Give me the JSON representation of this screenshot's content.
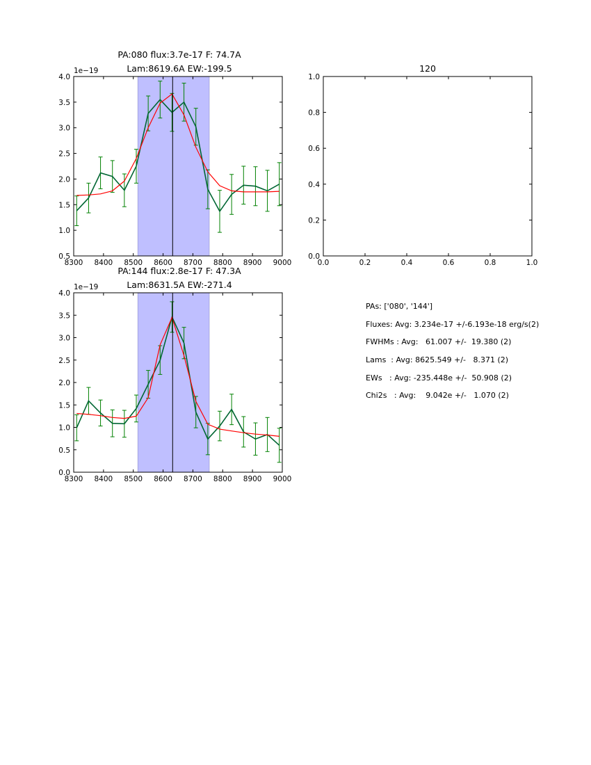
{
  "figure": {
    "background": "#ffffff"
  },
  "colors": {
    "data_line": "#006633",
    "errorbar": "#008000",
    "model": "#ff0000",
    "span": "#bfbfff",
    "vline": "#000000"
  },
  "chart_data": [
    {
      "type": "line",
      "title": "PA:080 flux:3.7e-17 F: 74.7A",
      "subtitle": "Lam:8619.6A EW:-199.5",
      "xlabel": "",
      "ylabel": "",
      "xlim": [
        8300,
        9000
      ],
      "ylim": [
        0.5,
        4.0
      ],
      "offset_text": "1e−19",
      "xticks": [
        "8300",
        "8400",
        "8500",
        "8600",
        "8700",
        "8800",
        "8900",
        "9000"
      ],
      "yticks": [
        "0.5",
        "1.0",
        "1.5",
        "2.0",
        "2.5",
        "3.0",
        "3.5",
        "4.0"
      ],
      "span": [
        8515,
        8755
      ],
      "vline": 8632,
      "x": [
        8310,
        8350,
        8390,
        8430,
        8470,
        8510,
        8550,
        8590,
        8630,
        8670,
        8710,
        8750,
        8790,
        8830,
        8870,
        8910,
        8950,
        8990
      ],
      "series": [
        {
          "name": "data",
          "values": [
            1.38,
            1.63,
            2.12,
            2.05,
            1.78,
            2.25,
            3.28,
            3.55,
            3.3,
            3.5,
            3.02,
            1.8,
            1.37,
            1.7,
            1.88,
            1.86,
            1.77,
            1.9
          ],
          "errors": [
            0.29,
            0.29,
            0.31,
            0.31,
            0.32,
            0.33,
            0.34,
            0.36,
            0.37,
            0.37,
            0.36,
            0.38,
            0.41,
            0.39,
            0.37,
            0.38,
            0.4,
            0.42
          ]
        },
        {
          "name": "model",
          "values": [
            1.68,
            1.69,
            1.71,
            1.77,
            1.96,
            2.4,
            3.0,
            3.48,
            3.66,
            3.25,
            2.62,
            2.14,
            1.87,
            1.77,
            1.75,
            1.75,
            1.75,
            1.76
          ]
        }
      ]
    },
    {
      "type": "line",
      "title": "120",
      "subtitle": "",
      "xlabel": "",
      "ylabel": "",
      "xlim": [
        0.0,
        1.0
      ],
      "ylim": [
        0.0,
        1.0
      ],
      "offset_text": "",
      "xticks": [
        "0.0",
        "0.2",
        "0.4",
        "0.6",
        "0.8",
        "1.0"
      ],
      "yticks": [
        "0.0",
        "0.2",
        "0.4",
        "0.6",
        "0.8",
        "1.0"
      ],
      "series": []
    },
    {
      "type": "line",
      "title": "PA:144 flux:2.8e-17 F: 47.3A",
      "subtitle": "Lam:8631.5A EW:-271.4",
      "xlabel": "",
      "ylabel": "",
      "xlim": [
        8300,
        9000
      ],
      "ylim": [
        0.0,
        4.0
      ],
      "offset_text": "1e−19",
      "xticks": [
        "8300",
        "8400",
        "8500",
        "8600",
        "8700",
        "8800",
        "8900",
        "9000"
      ],
      "yticks": [
        "0.0",
        "0.5",
        "1.0",
        "1.5",
        "2.0",
        "2.5",
        "3.0",
        "3.5",
        "4.0"
      ],
      "span": [
        8515,
        8755
      ],
      "vline": 8632,
      "x": [
        8310,
        8350,
        8390,
        8430,
        8470,
        8510,
        8550,
        8590,
        8630,
        8670,
        8710,
        8750,
        8790,
        8830,
        8870,
        8910,
        8950,
        8990
      ],
      "series": [
        {
          "name": "data",
          "values": [
            0.99,
            1.59,
            1.32,
            1.09,
            1.08,
            1.42,
            1.96,
            2.5,
            3.46,
            2.88,
            1.34,
            0.74,
            1.03,
            1.4,
            0.9,
            0.74,
            0.84,
            0.6
          ],
          "errors": [
            0.29,
            0.3,
            0.29,
            0.3,
            0.3,
            0.3,
            0.31,
            0.32,
            0.34,
            0.35,
            0.35,
            0.35,
            0.33,
            0.34,
            0.34,
            0.36,
            0.38,
            0.38
          ]
        },
        {
          "name": "model",
          "values": [
            1.31,
            1.29,
            1.26,
            1.22,
            1.2,
            1.25,
            1.66,
            2.84,
            3.45,
            2.6,
            1.58,
            1.07,
            0.96,
            0.92,
            0.88,
            0.85,
            0.83,
            0.8
          ]
        }
      ]
    }
  ],
  "stats": {
    "pas": "PAs: ['080', '144']",
    "fluxes": "Fluxes: Avg: 3.234e-17 +/-6.193e-18 erg/s(2)",
    "fwhms": "FWHMs : Avg:   61.007 +/-  19.380 (2)",
    "lams": "Lams  : Avg: 8625.549 +/-   8.371 (2)",
    "ews": "EWs   : Avg: -235.448e +/-  50.908 (2)",
    "chi2s": "Chi2s   : Avg:    9.042e +/-   1.070 (2)"
  }
}
